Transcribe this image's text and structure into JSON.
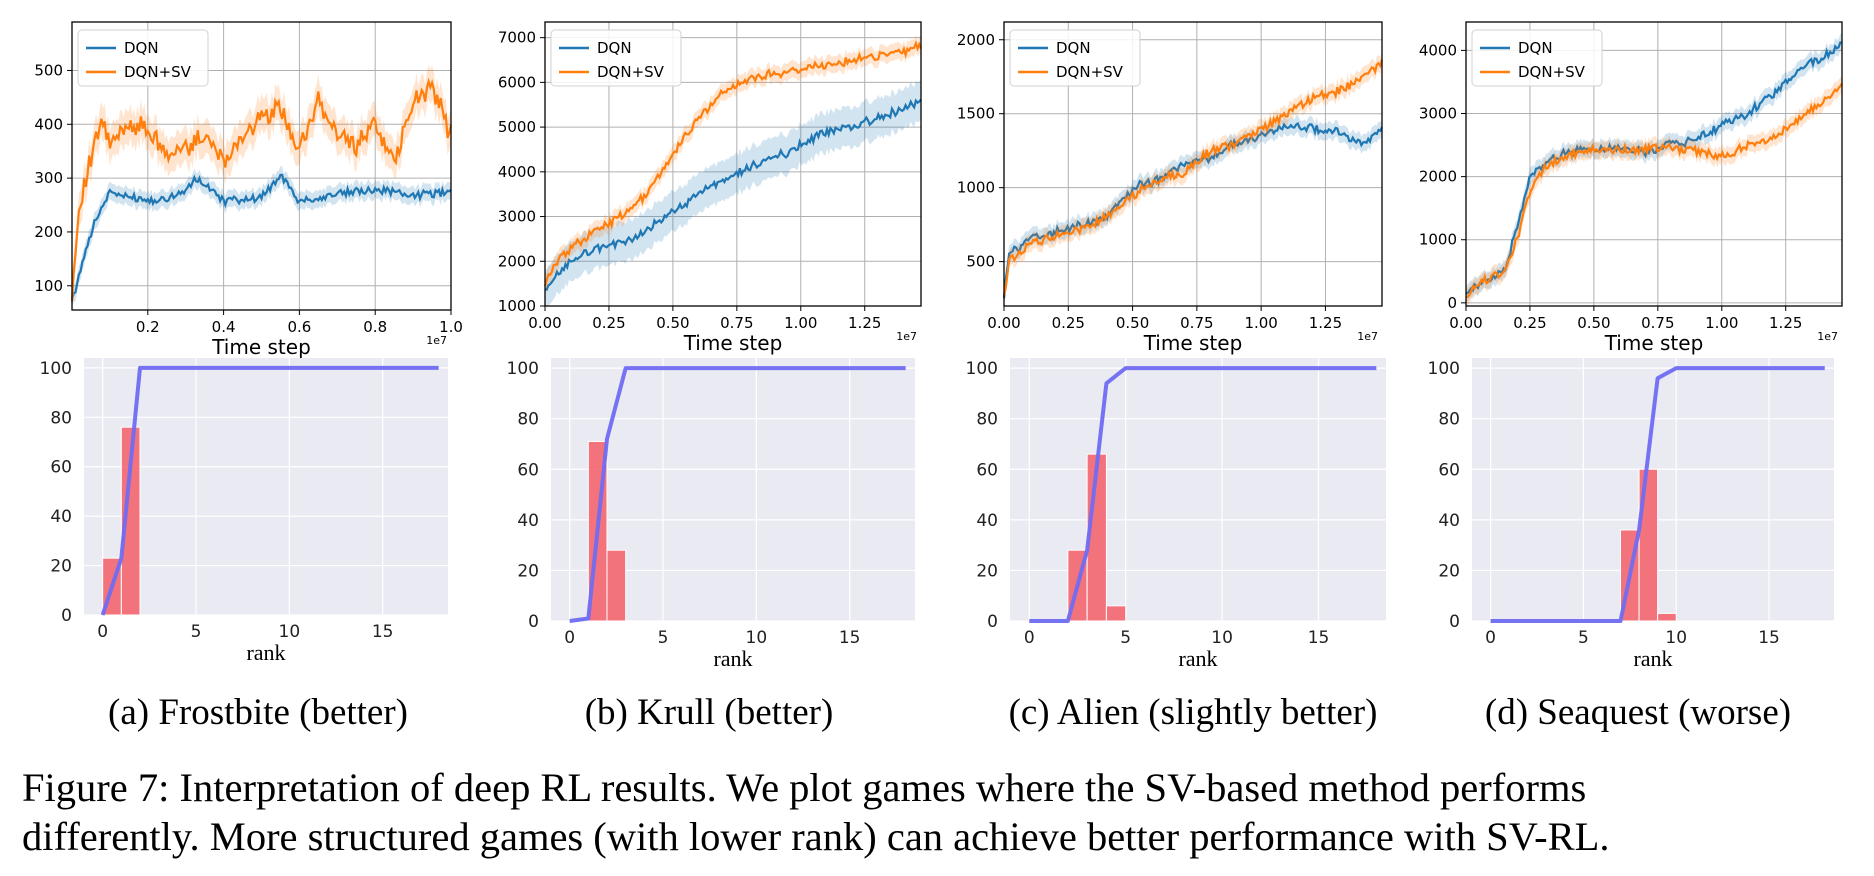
{
  "colors": {
    "dqn": "#1f77b4",
    "dqn_sv": "#ff7f0e",
    "rank_line": "#6f6cf2",
    "hist_bar": "#f46670",
    "hist_bg": "#eaeaf2"
  },
  "legend": {
    "dqn": "DQN",
    "dqn_sv": "DQN+SV"
  },
  "chart_data": [
    {
      "type": "line",
      "panel": "a",
      "xlabel": "Time step",
      "ylabel": "",
      "x_tick_labels": [
        "0.2",
        "0.4",
        "0.6",
        "0.8",
        "1.0"
      ],
      "x_ticks": [
        0.2,
        0.4,
        0.6,
        0.8,
        1.0
      ],
      "x_offset": "1e7",
      "xlim": [
        0.0,
        1.0
      ],
      "ylim": [
        55,
        590
      ],
      "y_ticks": [
        100,
        200,
        300,
        400,
        500
      ],
      "y_tick_labels": [
        "100",
        "200",
        "300",
        "400",
        "500"
      ],
      "legend_position": "top-left",
      "grid": true,
      "series": [
        {
          "name": "DQN",
          "x": [
            0,
            0.03,
            0.06,
            0.1,
            0.15,
            0.2,
            0.25,
            0.3,
            0.33,
            0.4,
            0.5,
            0.55,
            0.6,
            0.7,
            0.8,
            0.9,
            1.0
          ],
          "values": [
            70,
            150,
            220,
            275,
            265,
            260,
            262,
            275,
            300,
            258,
            265,
            305,
            258,
            270,
            280,
            268,
            275
          ]
        },
        {
          "name": "DQN+SV",
          "x": [
            0,
            0.02,
            0.05,
            0.08,
            0.1,
            0.15,
            0.2,
            0.25,
            0.3,
            0.35,
            0.4,
            0.45,
            0.5,
            0.55,
            0.6,
            0.65,
            0.7,
            0.75,
            0.8,
            0.85,
            0.9,
            0.95,
            1.0
          ],
          "values": [
            90,
            260,
            330,
            410,
            360,
            400,
            390,
            340,
            360,
            380,
            330,
            380,
            410,
            430,
            350,
            440,
            380,
            360,
            400,
            330,
            440,
            470,
            380
          ]
        }
      ]
    },
    {
      "type": "line",
      "panel": "b",
      "xlabel": "Time step",
      "ylabel": "",
      "x_tick_labels": [
        "0.00",
        "0.25",
        "0.50",
        "0.75",
        "1.00",
        "1.25"
      ],
      "x_ticks": [
        0,
        0.25,
        0.5,
        0.75,
        1.0,
        1.25
      ],
      "x_offset": "1e7",
      "xlim": [
        0,
        1.47
      ],
      "ylim": [
        1000,
        7350
      ],
      "y_ticks": [
        1000,
        2000,
        3000,
        4000,
        5000,
        6000,
        7000
      ],
      "y_tick_labels": [
        "1000",
        "2000",
        "3000",
        "4000",
        "5000",
        "6000",
        "7000"
      ],
      "legend_position": "top-left",
      "grid": true,
      "series": [
        {
          "name": "DQN",
          "x": [
            0,
            0.05,
            0.1,
            0.2,
            0.3,
            0.4,
            0.5,
            0.6,
            0.7,
            0.8,
            0.9,
            1.0,
            1.1,
            1.2,
            1.3,
            1.4,
            1.47
          ],
          "values": [
            1300,
            1700,
            2000,
            2300,
            2400,
            2700,
            3100,
            3500,
            3800,
            4100,
            4300,
            4600,
            4900,
            5000,
            5200,
            5400,
            5600
          ]
        },
        {
          "name": "DQN+SV",
          "x": [
            0,
            0.05,
            0.1,
            0.2,
            0.3,
            0.4,
            0.5,
            0.6,
            0.7,
            0.8,
            0.9,
            1.0,
            1.1,
            1.2,
            1.3,
            1.4,
            1.47
          ],
          "values": [
            1500,
            2000,
            2300,
            2700,
            3000,
            3500,
            4400,
            5200,
            5800,
            6100,
            6200,
            6300,
            6400,
            6500,
            6600,
            6700,
            6800
          ]
        }
      ]
    },
    {
      "type": "line",
      "panel": "c",
      "xlabel": "Time step",
      "ylabel": "",
      "x_tick_labels": [
        "0.00",
        "0.25",
        "0.50",
        "0.75",
        "1.00",
        "1.25"
      ],
      "x_ticks": [
        0,
        0.25,
        0.5,
        0.75,
        1.0,
        1.25
      ],
      "x_offset": "1e7",
      "xlim": [
        0,
        1.47
      ],
      "ylim": [
        200,
        2120
      ],
      "y_ticks": [
        500,
        1000,
        1500,
        2000
      ],
      "y_tick_labels": [
        "500",
        "1000",
        "1500",
        "2000"
      ],
      "legend_position": "top-left",
      "grid": true,
      "series": [
        {
          "name": "DQN",
          "x": [
            0,
            0.02,
            0.1,
            0.2,
            0.3,
            0.4,
            0.5,
            0.6,
            0.7,
            0.8,
            0.9,
            1.0,
            1.1,
            1.2,
            1.3,
            1.4,
            1.47
          ],
          "values": [
            250,
            550,
            650,
            700,
            750,
            800,
            1000,
            1050,
            1150,
            1200,
            1300,
            1350,
            1420,
            1400,
            1380,
            1300,
            1400
          ]
        },
        {
          "name": "DQN+SV",
          "x": [
            0,
            0.02,
            0.1,
            0.2,
            0.3,
            0.4,
            0.5,
            0.6,
            0.7,
            0.8,
            0.9,
            1.0,
            1.1,
            1.2,
            1.3,
            1.4,
            1.47
          ],
          "values": [
            280,
            500,
            620,
            680,
            720,
            800,
            950,
            1050,
            1100,
            1250,
            1300,
            1400,
            1500,
            1600,
            1650,
            1750,
            1850
          ]
        }
      ]
    },
    {
      "type": "line",
      "panel": "d",
      "xlabel": "Time step",
      "ylabel": "",
      "x_tick_labels": [
        "0.00",
        "0.25",
        "0.50",
        "0.75",
        "1.00",
        "1.25"
      ],
      "x_ticks": [
        0,
        0.25,
        0.5,
        0.75,
        1.0,
        1.25
      ],
      "x_offset": "1e7",
      "xlim": [
        0,
        1.47
      ],
      "ylim": [
        -50,
        4450
      ],
      "y_ticks": [
        0,
        1000,
        2000,
        3000,
        4000
      ],
      "y_tick_labels": [
        "0",
        "1000",
        "2000",
        "3000",
        "4000"
      ],
      "legend_position": "top-left",
      "grid": true,
      "series": [
        {
          "name": "DQN",
          "x": [
            0,
            0.05,
            0.1,
            0.15,
            0.2,
            0.25,
            0.3,
            0.4,
            0.5,
            0.6,
            0.7,
            0.8,
            0.9,
            1.0,
            1.1,
            1.2,
            1.3,
            1.4,
            1.47
          ],
          "values": [
            100,
            300,
            400,
            500,
            1200,
            2000,
            2200,
            2400,
            2450,
            2450,
            2400,
            2500,
            2600,
            2800,
            3000,
            3300,
            3700,
            3900,
            4100
          ]
        },
        {
          "name": "DQN+SV",
          "x": [
            0,
            0.05,
            0.1,
            0.15,
            0.2,
            0.25,
            0.3,
            0.4,
            0.5,
            0.6,
            0.7,
            0.8,
            0.9,
            1.0,
            1.1,
            1.2,
            1.3,
            1.4,
            1.47
          ],
          "values": [
            100,
            300,
            400,
            500,
            1000,
            1800,
            2100,
            2350,
            2450,
            2400,
            2450,
            2450,
            2400,
            2300,
            2500,
            2600,
            2900,
            3200,
            3500
          ]
        }
      ]
    },
    {
      "type": "bar",
      "panel": "a",
      "xlabel": "rank",
      "ylabel": "",
      "x_ticks": [
        0,
        5,
        10,
        15
      ],
      "y_ticks": [
        0,
        20,
        40,
        60,
        80,
        100
      ],
      "xlim": [
        -1,
        18.5
      ],
      "ylim": [
        0,
        104
      ],
      "bars": [
        {
          "x": 1,
          "value": 23
        },
        {
          "x": 2,
          "value": 76
        }
      ],
      "cumulative_line": {
        "x": [
          0,
          1,
          2,
          18
        ],
        "values": [
          0,
          23,
          100,
          100
        ]
      }
    },
    {
      "type": "bar",
      "panel": "b",
      "xlabel": "rank",
      "ylabel": "",
      "x_ticks": [
        0,
        5,
        10,
        15
      ],
      "y_ticks": [
        0,
        20,
        40,
        60,
        80,
        100
      ],
      "xlim": [
        -1,
        18.5
      ],
      "ylim": [
        0,
        104
      ],
      "bars": [
        {
          "x": 2,
          "value": 71
        },
        {
          "x": 3,
          "value": 28
        }
      ],
      "cumulative_line": {
        "x": [
          0,
          1,
          2,
          3,
          18
        ],
        "values": [
          0,
          1,
          72,
          100,
          100
        ]
      }
    },
    {
      "type": "bar",
      "panel": "c",
      "xlabel": "rank",
      "ylabel": "",
      "x_ticks": [
        0,
        5,
        10,
        15
      ],
      "y_ticks": [
        0,
        20,
        40,
        60,
        80,
        100
      ],
      "xlim": [
        -1,
        18.5
      ],
      "ylim": [
        0,
        104
      ],
      "bars": [
        {
          "x": 3,
          "value": 28
        },
        {
          "x": 4,
          "value": 66
        },
        {
          "x": 5,
          "value": 6
        }
      ],
      "cumulative_line": {
        "x": [
          0,
          2,
          3,
          4,
          5,
          18
        ],
        "values": [
          0,
          0,
          28,
          94,
          100,
          100
        ]
      }
    },
    {
      "type": "bar",
      "panel": "d",
      "xlabel": "rank",
      "ylabel": "",
      "x_ticks": [
        0,
        5,
        10,
        15
      ],
      "y_ticks": [
        0,
        20,
        40,
        60,
        80,
        100
      ],
      "xlim": [
        -1,
        18.5
      ],
      "ylim": [
        0,
        104
      ],
      "bars": [
        {
          "x": 8,
          "value": 36
        },
        {
          "x": 9,
          "value": 60
        },
        {
          "x": 10,
          "value": 3
        }
      ],
      "cumulative_line": {
        "x": [
          0,
          7,
          8,
          9,
          10,
          18
        ],
        "values": [
          0,
          0,
          36,
          96,
          100,
          100
        ]
      }
    }
  ],
  "subcaptions": [
    {
      "label": "(a)",
      "text": "Frostbite (better)"
    },
    {
      "label": "(b)",
      "text": "Krull (better)"
    },
    {
      "label": "(c)",
      "text": "Alien (slightly better)"
    },
    {
      "label": "(d)",
      "text": "Seaquest (worse)"
    }
  ],
  "caption": {
    "line1": "Figure 7: Interpretation of deep RL results. We plot games where the SV-based method performs",
    "line2": "differently. More structured games (with lower rank) can achieve better performance with SV-RL."
  }
}
